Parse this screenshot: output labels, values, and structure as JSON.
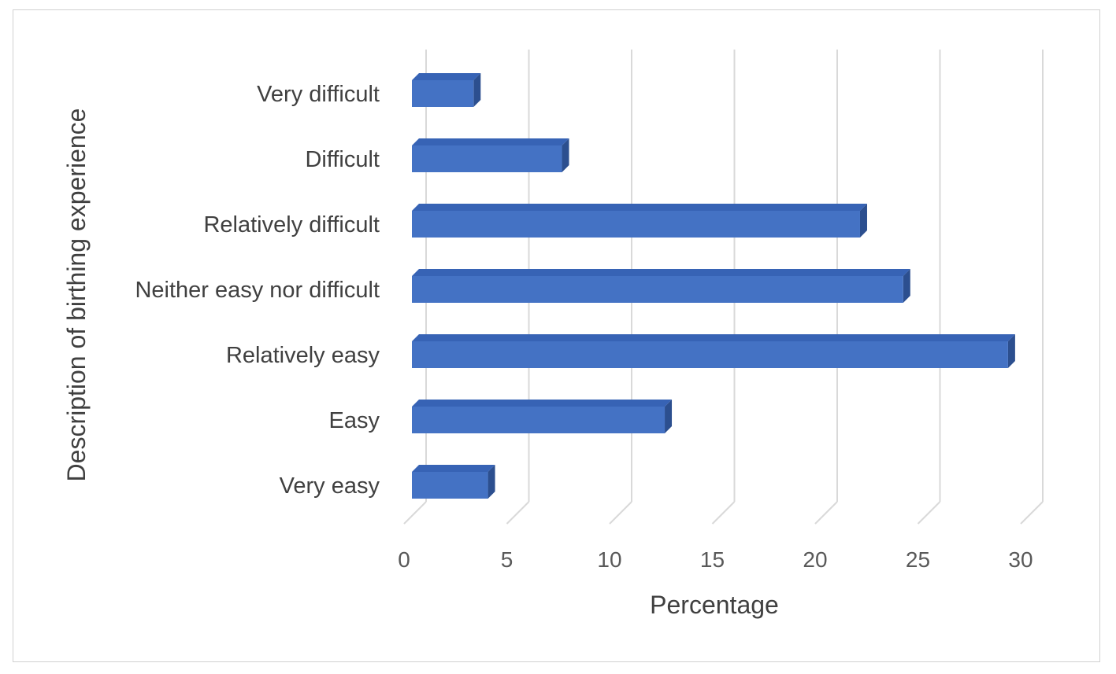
{
  "chart_data": {
    "type": "bar",
    "orientation": "horizontal",
    "style": "3d",
    "categories": [
      "Very difficult",
      "Difficult",
      "Relatively difficult",
      "Neither easy nor difficult",
      "Relatively easy",
      "Easy",
      "Very easy"
    ],
    "values": [
      3.0,
      7.3,
      21.8,
      23.9,
      29.0,
      12.3,
      3.7
    ],
    "xlabel": "Percentage",
    "ylabel": "Description of birthing experience",
    "xlim": [
      0,
      30
    ],
    "xticks": [
      "0",
      "5",
      "10",
      "15",
      "20",
      "25",
      "30"
    ],
    "grid": "vertical",
    "legend": "none",
    "colors": {
      "bar_front": "#4472c4",
      "bar_top": "#3763b5",
      "bar_side": "#2c4f8f",
      "gridline": "#d9d9d9",
      "frame": "#d0d0d0"
    }
  }
}
